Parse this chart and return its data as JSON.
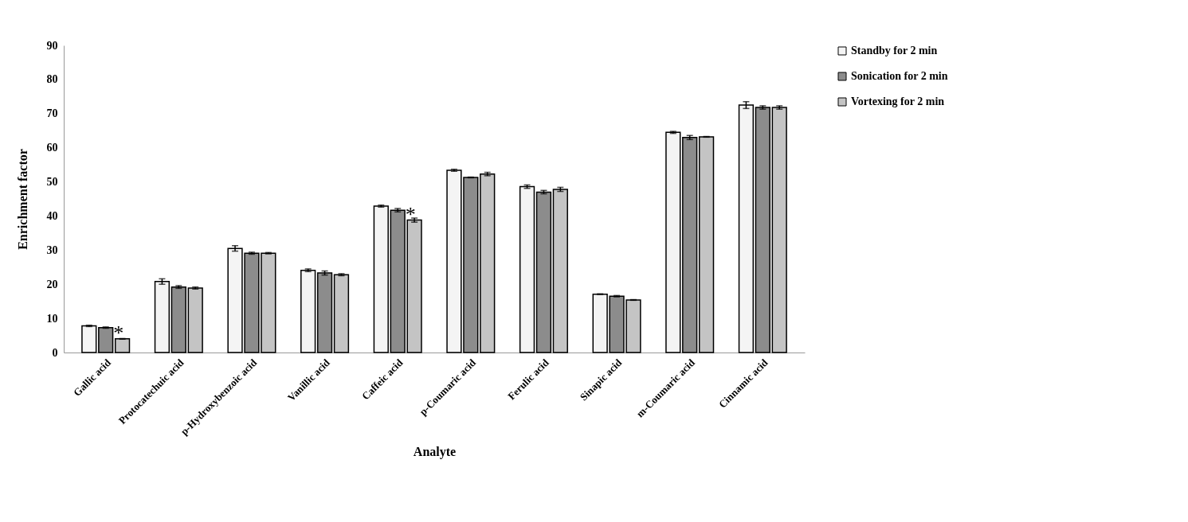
{
  "chart_data": {
    "type": "bar",
    "xlabel": "Analyte",
    "ylabel": "Enrichment factor",
    "categories": [
      "Gallic acid",
      "Protocatechuic  acid",
      "p-Hydroxybenzoic acid",
      "Vanillic acid",
      "Caffeic acid",
      "p-Coumaric acid",
      "Ferulic acid",
      "Sinapic acid",
      "m-Coumaric acid",
      "Cinnamic acid"
    ],
    "series": [
      {
        "name": "Standby  for 2 min",
        "color": "#f4f4f4",
        "values": [
          7.8,
          20.8,
          30.5,
          24.1,
          42.9,
          53.4,
          48.6,
          17.1,
          64.5,
          72.5
        ],
        "errors": [
          0.2,
          0.8,
          0.8,
          0.4,
          0.3,
          0.3,
          0.5,
          0.1,
          0.3,
          1.0
        ]
      },
      {
        "name": "Sonication for 2 min",
        "color": "#8c8c8c",
        "values": [
          7.3,
          19.2,
          29.1,
          23.3,
          41.7,
          51.3,
          47.0,
          16.5,
          63.0,
          71.8
        ],
        "errors": [
          0.2,
          0.4,
          0.3,
          0.6,
          0.5,
          0.1,
          0.5,
          0.2,
          0.6,
          0.5
        ]
      },
      {
        "name": "Vortexing for 2 min",
        "color": "#c4c4c4",
        "values": [
          4.0,
          18.9,
          29.1,
          22.8,
          38.8,
          52.3,
          47.8,
          15.4,
          63.2,
          71.8
        ],
        "errors": [
          0.1,
          0.3,
          0.2,
          0.3,
          0.6,
          0.5,
          0.6,
          0.1,
          0.1,
          0.5
        ]
      }
    ],
    "annotations": [
      {
        "text": "*",
        "x": "Gallic acid",
        "y": 4.0
      },
      {
        "text": "*",
        "x": "Caffeic acid",
        "y": 38.8
      }
    ],
    "ylim": [
      0,
      90
    ],
    "yticks": [
      0,
      10,
      20,
      30,
      40,
      50,
      60,
      70,
      80,
      90
    ],
    "legend": "top right"
  }
}
